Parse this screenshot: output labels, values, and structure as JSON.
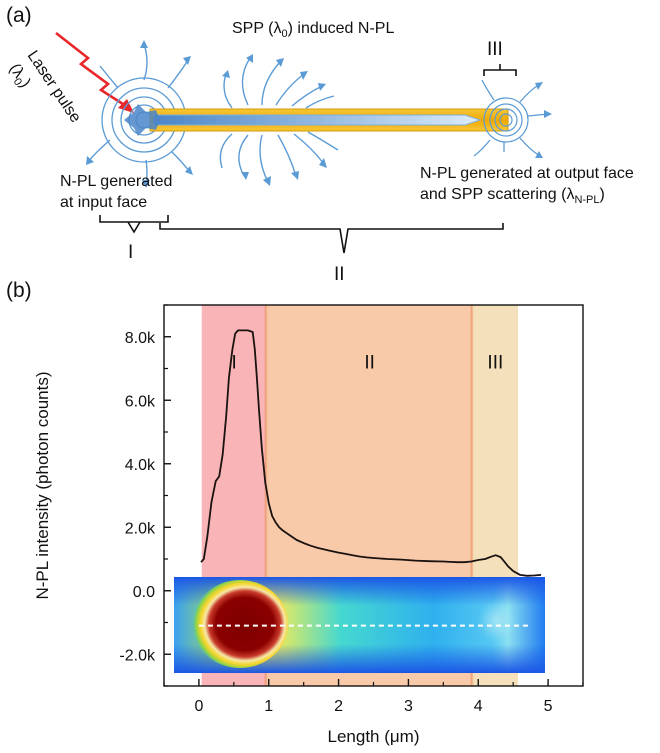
{
  "panel_a": {
    "label": "(a)",
    "laser_label": "Laser pulse (λ0)",
    "laser_label_parts": {
      "main": "Laser pulse",
      "open": "(λ",
      "sub": "0",
      "close": ")"
    },
    "spp_label": "SPP (λ0) induced N-PL",
    "spp_parts": {
      "pre": "SPP (λ",
      "sub": "0",
      "post": ") induced N-PL"
    },
    "input_label_lines": [
      "N-PL generated",
      "at input face"
    ],
    "output_label_line1": "N-PL generated at output face",
    "output_label_line2": "and SPP scattering (λN-PL)",
    "output_line2_parts": {
      "pre": "and SPP scattering (λ",
      "sub": "N-PL",
      "post": ")"
    },
    "region_labels": [
      "I",
      "II",
      "III"
    ],
    "colors": {
      "wire": "#f3b515",
      "laser": "#e8262a",
      "emission": "#5b9bd5",
      "wire_core": "#a9cfee"
    }
  },
  "panel_b": {
    "label": "(b)"
  },
  "chart_data": {
    "type": "line",
    "title": "",
    "xlabel": "Length (μm)",
    "xlabel_parts": {
      "pre": "Length (",
      "unit": "μm",
      "post": ")"
    },
    "ylabel": "N-PL intensity (photon counts)",
    "xlim": [
      -0.5,
      5.5
    ],
    "ylim": [
      -3000,
      9000
    ],
    "x_ticks": [
      0,
      1,
      2,
      3,
      4,
      5
    ],
    "x_tick_labels": [
      "0",
      "1",
      "2",
      "3",
      "4",
      "5"
    ],
    "y_ticks": [
      -2000,
      0,
      2000,
      4000,
      6000,
      8000
    ],
    "y_tick_labels": [
      "-2.0k",
      "0.0",
      "2.0k",
      "4.0k",
      "6.0k",
      "8.0k"
    ],
    "regions": [
      {
        "name": "I",
        "x0": 0.04,
        "x1": 0.97,
        "color": "#f7aeb0"
      },
      {
        "name": "II",
        "x0": 0.97,
        "x1": 3.92,
        "color": "#f7c6a2"
      },
      {
        "name": "III",
        "x0": 3.92,
        "x1": 4.57,
        "color": "#f3deb6"
      }
    ],
    "series": [
      {
        "color": "#1a1210",
        "x": [
          0.03,
          0.07,
          0.12,
          0.18,
          0.24,
          0.29,
          0.34,
          0.39,
          0.43,
          0.48,
          0.52,
          0.56,
          0.6,
          0.64,
          0.7,
          0.77,
          0.8,
          0.83,
          0.86,
          0.9,
          0.95,
          1.0,
          1.05,
          1.1,
          1.15,
          1.2,
          1.3,
          1.4,
          1.5,
          1.6,
          1.7,
          1.8,
          1.9,
          2.0,
          2.1,
          2.2,
          2.3,
          2.4,
          2.5,
          2.7,
          2.9,
          3.1,
          3.3,
          3.5,
          3.6,
          3.7,
          3.8,
          3.9,
          4.0,
          4.1,
          4.18,
          4.25,
          4.32,
          4.38,
          4.43,
          4.5,
          4.6,
          4.7,
          4.8,
          4.9
        ],
        "y": [
          900,
          1000,
          1700,
          2800,
          3450,
          3600,
          4300,
          5500,
          6700,
          7600,
          8100,
          8200,
          8200,
          8200,
          8200,
          8150,
          7600,
          6700,
          5700,
          4500,
          3400,
          2750,
          2350,
          2150,
          2000,
          1900,
          1750,
          1600,
          1500,
          1420,
          1350,
          1300,
          1250,
          1200,
          1160,
          1120,
          1080,
          1050,
          1030,
          1000,
          980,
          950,
          930,
          920,
          910,
          900,
          900,
          920,
          970,
          1000,
          1070,
          1120,
          1060,
          900,
          760,
          620,
          500,
          470,
          480,
          500
        ]
      }
    ],
    "line_scan_y": -1100,
    "map_extent": {
      "x": [
        0.0,
        4.72
      ],
      "y": [
        -2600,
        400
      ]
    }
  }
}
